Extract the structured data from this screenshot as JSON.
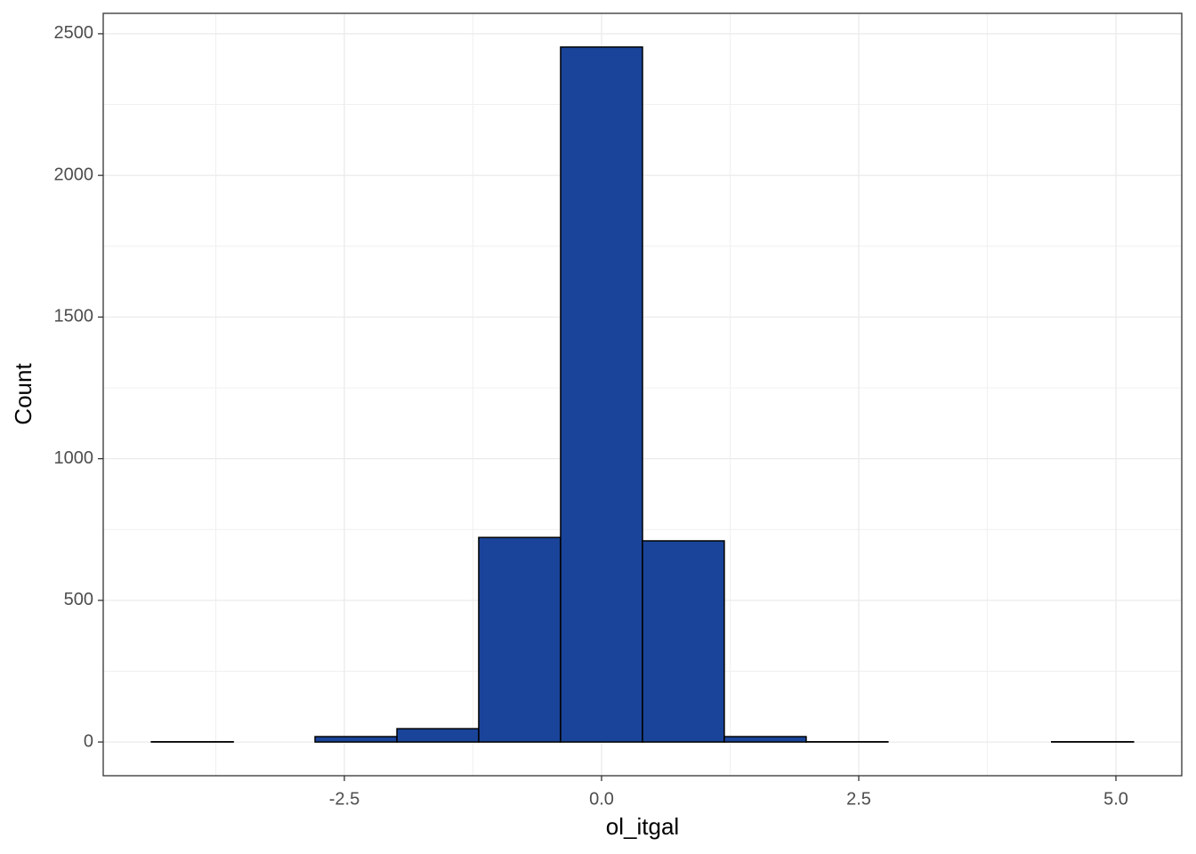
{
  "chart_data": {
    "type": "histogram",
    "x_label": "ol_itgal",
    "y_label": "Count",
    "bins": [
      -4.376,
      -3.58,
      -2.785,
      -1.989,
      -1.194,
      -0.398,
      0.398,
      1.193,
      1.989,
      2.784,
      3.58,
      4.375,
      5.171
    ],
    "values": [
      1,
      0,
      19,
      47,
      722,
      2453,
      710,
      19,
      1,
      0,
      0,
      1
    ],
    "color": "#1a4499",
    "xlim": [
      -4.844,
      5.64
    ],
    "ylim": [
      -119,
      2572
    ],
    "xticks": [
      {
        "value": -2.5,
        "label": "-2.5"
      },
      {
        "value": 0,
        "label": "0.0"
      },
      {
        "value": 2.5,
        "label": "2.5"
      },
      {
        "value": 5,
        "label": "5.0"
      }
    ],
    "yticks": [
      0,
      500,
      1000,
      1500,
      2000,
      2500
    ],
    "grid": true
  }
}
